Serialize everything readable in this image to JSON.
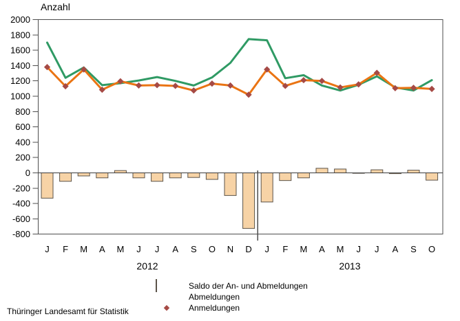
{
  "title": "Anzahl",
  "footer": "Thüringer Landesamt für Statistik",
  "colors": {
    "bar_fill": "#f7d3a6",
    "bar_border": "#5b5349",
    "abmeldungen_line": "#2f9a64",
    "anmeldungen_line": "#ea7413",
    "marker": "#a64a45",
    "frame": "#4d4d4d",
    "zero_line": "#3a3a3a",
    "text": "#000000"
  },
  "legend": {
    "items": [
      {
        "label": "Saldo der An- und Abmeldungen",
        "swatch": "bar"
      },
      {
        "label": "Abmeldungen",
        "swatch": "line-green"
      },
      {
        "label": "Anmeldungen",
        "swatch": "line-orange-diamond"
      }
    ]
  },
  "chart_data": {
    "type": "mixed-bar-line",
    "title": "Anzahl",
    "ylim": [
      -800,
      2000
    ],
    "ytick_step": 200,
    "ytick_labels": [
      "2000",
      "1800",
      "1600",
      "1400",
      "1200",
      "1000",
      "800",
      "600",
      "400",
      "200",
      "0",
      "-200",
      "-400",
      "-600",
      "-800"
    ],
    "grid": "off",
    "legend_position": "bottom",
    "categories": [
      "J",
      "F",
      "M",
      "A",
      "M",
      "J",
      "J",
      "A",
      "S",
      "O",
      "N",
      "D",
      "J",
      "F",
      "M",
      "A",
      "M",
      "J",
      "J",
      "A",
      "S",
      "O"
    ],
    "year_groups": [
      {
        "label": "2012",
        "months": 12
      },
      {
        "label": "2013",
        "months": 10
      }
    ],
    "series": [
      {
        "name": "Saldo der An- und Abmeldungen",
        "type": "bar",
        "values": [
          -330,
          -110,
          -40,
          -65,
          30,
          -65,
          -110,
          -65,
          -60,
          -85,
          -295,
          -725,
          -380,
          -100,
          -65,
          60,
          50,
          -5,
          40,
          -10,
          35,
          -95
        ]
      },
      {
        "name": "Abmeldungen",
        "type": "line",
        "values": [
          1700,
          1240,
          1375,
          1145,
          1170,
          1205,
          1250,
          1200,
          1140,
          1245,
          1435,
          1745,
          1730,
          1235,
          1275,
          1140,
          1075,
          1150,
          1260,
          1115,
          1075,
          1210
        ]
      },
      {
        "name": "Anmeldungen",
        "type": "line",
        "marker": "diamond",
        "values": [
          1380,
          1130,
          1350,
          1085,
          1195,
          1140,
          1145,
          1135,
          1075,
          1165,
          1140,
          1020,
          1350,
          1135,
          1210,
          1200,
          1115,
          1155,
          1305,
          1105,
          1110,
          1095
        ]
      }
    ]
  }
}
